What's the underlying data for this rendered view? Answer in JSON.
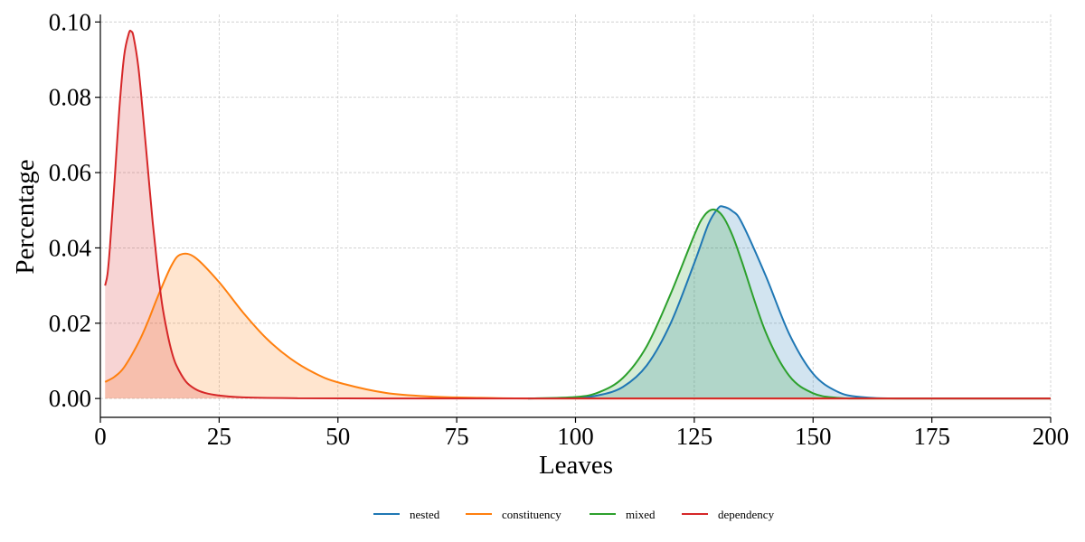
{
  "chart_data": {
    "type": "area",
    "title": "",
    "xlabel": "Leaves",
    "ylabel": "Percentage",
    "xlim": [
      0,
      200
    ],
    "ylim": [
      -0.005,
      0.102
    ],
    "x_ticks": [
      0,
      25,
      50,
      75,
      100,
      125,
      150,
      175,
      200
    ],
    "y_ticks": [
      0.0,
      0.02,
      0.04,
      0.06,
      0.08,
      0.1
    ],
    "x_tick_labels": [
      "0",
      "25",
      "50",
      "75",
      "100",
      "125",
      "150",
      "175",
      "200"
    ],
    "y_tick_labels": [
      "0.00",
      "0.02",
      "0.04",
      "0.06",
      "0.08",
      "0.10"
    ],
    "grid": true,
    "legend_position": "bottom-center",
    "series": [
      {
        "name": "nested",
        "color": "#1f77b4",
        "x": [
          90,
          100,
          105,
          110,
          115,
          120,
          125,
          128,
          130,
          131,
          133,
          135,
          140,
          145,
          150,
          155,
          160,
          170,
          200
        ],
        "y": [
          0.0,
          0.0002,
          0.0009,
          0.0031,
          0.0088,
          0.0199,
          0.036,
          0.0464,
          0.0505,
          0.051,
          0.0498,
          0.0467,
          0.0327,
          0.0171,
          0.0066,
          0.0019,
          0.0004,
          0.0,
          0.0
        ]
      },
      {
        "name": "constituency",
        "color": "#ff7f0e",
        "x": [
          1,
          3,
          5,
          8,
          10,
          12,
          15,
          17,
          20,
          25,
          30,
          35,
          40,
          45,
          50,
          60,
          70,
          80,
          100,
          200
        ],
        "y": [
          0.0044,
          0.0058,
          0.0083,
          0.0148,
          0.0204,
          0.0268,
          0.0354,
          0.0383,
          0.0374,
          0.0309,
          0.0229,
          0.0159,
          0.0106,
          0.0068,
          0.0043,
          0.0015,
          0.0005,
          0.0002,
          0.0,
          0.0
        ]
      },
      {
        "name": "mixed",
        "color": "#2ca02c",
        "x": [
          90,
          100,
          105,
          110,
          115,
          120,
          125,
          127,
          129,
          131,
          133,
          135,
          140,
          145,
          150,
          155,
          160,
          170,
          200
        ],
        "y": [
          0.0,
          0.0004,
          0.0017,
          0.0055,
          0.0139,
          0.0277,
          0.0434,
          0.0484,
          0.0502,
          0.0484,
          0.0434,
          0.0364,
          0.0177,
          0.006,
          0.0014,
          0.0002,
          0.0,
          0.0,
          0.0
        ]
      },
      {
        "name": "dependency",
        "color": "#d62728",
        "x": [
          1,
          1.5,
          2,
          3,
          4,
          5,
          6,
          6.5,
          7,
          8,
          9,
          10,
          11,
          12,
          13,
          14,
          15,
          16,
          18,
          20,
          22,
          25,
          30,
          40,
          60,
          200
        ],
        "y": [
          0.03,
          0.033,
          0.04,
          0.058,
          0.077,
          0.091,
          0.097,
          0.0975,
          0.096,
          0.088,
          0.075,
          0.061,
          0.047,
          0.035,
          0.025,
          0.018,
          0.0125,
          0.0088,
          0.0045,
          0.0025,
          0.0015,
          0.0008,
          0.0003,
          0.0001,
          0.0,
          0.0
        ]
      }
    ]
  }
}
